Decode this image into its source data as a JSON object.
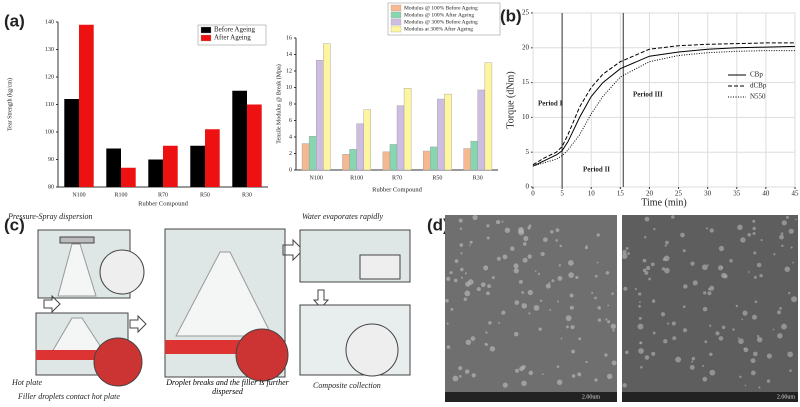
{
  "panel_labels": [
    "(a)",
    "(b)",
    "(c)",
    "(d)"
  ],
  "chart_data": [
    {
      "type": "bar",
      "y_label": "Tear Strength (kg/cm)",
      "x_label": "Rubber Compound",
      "categories": [
        "N100",
        "R100",
        "R70",
        "R50",
        "R30"
      ],
      "series": [
        {
          "name": "Before Ageing",
          "color": "#000000",
          "values": [
            112,
            94,
            90,
            95,
            115
          ]
        },
        {
          "name": "After Ageing",
          "color": "#ee1111",
          "values": [
            139,
            87,
            95,
            101,
            110
          ]
        }
      ],
      "ylim": [
        80,
        140
      ],
      "yticks": [
        80,
        90,
        100,
        110,
        120,
        130,
        140
      ],
      "legend": "top-right"
    },
    {
      "type": "bar",
      "y_label": "Tensile Modulus @ Break (Mpa)",
      "x_label": "Rubber Compound",
      "categories": [
        "N100",
        "R100",
        "R70",
        "R50",
        "R30"
      ],
      "series": [
        {
          "name": "Modulus @ 100% Before Ageing",
          "color": "#f6b891",
          "values": [
            3.2,
            1.9,
            2.2,
            2.3,
            2.6
          ]
        },
        {
          "name": "Modulus @ 100% After Ageing",
          "color": "#86d6b0",
          "values": [
            4.1,
            2.5,
            3.1,
            2.8,
            3.5
          ]
        },
        {
          "name": "Modulus @ 300% Before Ageing",
          "color": "#cdbde3",
          "values": [
            13.3,
            5.6,
            7.8,
            8.6,
            9.7
          ]
        },
        {
          "name": "Modulus at 300% After Ageing",
          "color": "#fdf59f",
          "values": [
            15.3,
            7.3,
            9.9,
            9.2,
            13.0
          ]
        }
      ],
      "ylim": [
        0,
        16
      ],
      "yticks": [
        0,
        2,
        4,
        6,
        8,
        10,
        12,
        14,
        16
      ],
      "legend": "top-right"
    },
    {
      "type": "line",
      "x_label": "Time (min)",
      "y_label": "Torque (dNm)",
      "x": [
        0,
        2,
        4,
        5,
        6,
        8,
        10,
        12,
        15,
        20,
        25,
        30,
        35,
        40,
        45
      ],
      "series": [
        {
          "name": "CBp",
          "style": "solid",
          "color": "#000000",
          "values": [
            3,
            3.8,
            4.6,
            5.2,
            6.5,
            10,
            13,
            15,
            17,
            18.8,
            19.4,
            19.8,
            20,
            20.1,
            20.2
          ]
        },
        {
          "name": "dCBp",
          "style": "dashed",
          "color": "#000000",
          "values": [
            3.2,
            4.2,
            5,
            5.8,
            7.5,
            11.5,
            14.3,
            16.2,
            18,
            19.8,
            20.3,
            20.5,
            20.6,
            20.7,
            20.7
          ]
        },
        {
          "name": "N550",
          "style": "dotted",
          "color": "#000000",
          "values": [
            3,
            3.5,
            4,
            4.5,
            5.3,
            7.5,
            10.5,
            13,
            15.8,
            18,
            18.9,
            19.3,
            19.5,
            19.6,
            19.6
          ]
        }
      ],
      "vlines": [
        5,
        15.5
      ],
      "annotations": [
        "Period I",
        "Period II",
        "Period III"
      ],
      "xlim": [
        0,
        45
      ],
      "xticks": [
        0,
        5,
        10,
        15,
        20,
        25,
        30,
        35,
        40,
        45
      ],
      "ylim": [
        0,
        25
      ],
      "yticks": [
        0,
        5,
        10,
        15,
        20,
        25
      ],
      "grid": true,
      "legend": "right"
    }
  ],
  "diagram": {
    "captions": [
      "Pressure-Spray dispersion",
      "Water evaporates rapidly",
      "Hot plate",
      "Filler droplets contact hot plate",
      "Droplet breaks and the filler is further dispersed",
      "Composite collection"
    ]
  },
  "micrographs": {
    "scale_labels": [
      "2.00um",
      "2.00um"
    ]
  }
}
